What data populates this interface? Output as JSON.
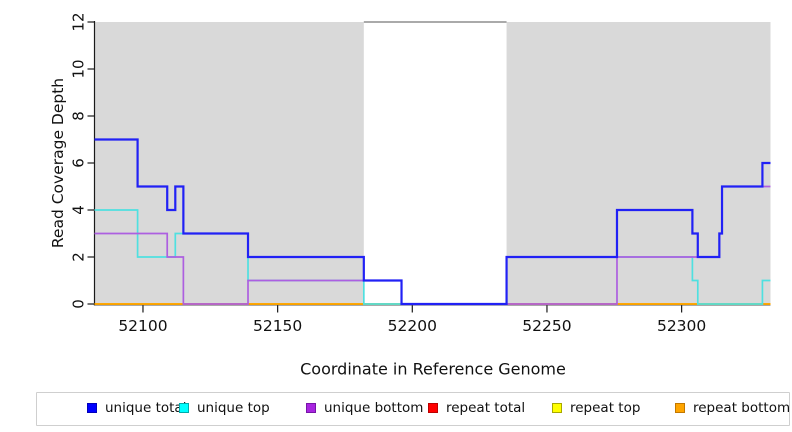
{
  "chart_data": {
    "type": "line",
    "subtype": "step",
    "title": "",
    "xlabel": "Coordinate in Reference Genome",
    "ylabel": "Read Coverage Depth",
    "xlim": [
      52082,
      52333
    ],
    "ylim": [
      0,
      12
    ],
    "x_ticks": [
      52100,
      52150,
      52200,
      52250,
      52300
    ],
    "y_ticks": [
      0,
      2,
      4,
      6,
      8,
      10,
      12
    ],
    "grid": "off",
    "shaded_regions": [
      {
        "x0": 52082,
        "x1": 52182,
        "color": "#d9d9d9"
      },
      {
        "x0": 52235,
        "x1": 52333,
        "color": "#d9d9d9"
      }
    ],
    "gap_top_line": {
      "x0": 52182,
      "x1": 52235,
      "y": 12,
      "color": "#8e8e8e"
    },
    "series": [
      {
        "name": "repeat total",
        "color": "#e60000",
        "width": 1.6,
        "points": [
          [
            52082,
            0
          ],
          [
            52333,
            0
          ]
        ]
      },
      {
        "name": "repeat top",
        "color": "#ffff00",
        "width": 1.6,
        "points": [
          [
            52082,
            0
          ],
          [
            52333,
            0
          ]
        ]
      },
      {
        "name": "repeat bottom",
        "color": "#ffa500",
        "width": 1.8,
        "points": [
          [
            52082,
            0
          ],
          [
            52333,
            0
          ]
        ]
      },
      {
        "name": "unique top",
        "color": "#4fe0e0",
        "width": 1.7,
        "points": [
          [
            52082,
            4
          ],
          [
            52098,
            2
          ],
          [
            52112,
            3
          ],
          [
            52139,
            1
          ],
          [
            52182,
            0
          ],
          [
            52235,
            2
          ],
          [
            52304,
            1
          ],
          [
            52306,
            0
          ],
          [
            52330,
            1
          ]
        ]
      },
      {
        "name": "unique bottom",
        "color": "#ad5fe0",
        "width": 1.7,
        "points": [
          [
            52082,
            3
          ],
          [
            52109,
            2
          ],
          [
            52115,
            0
          ],
          [
            52139,
            1
          ],
          [
            52196,
            0
          ],
          [
            52276,
            2
          ],
          [
            52314,
            3
          ],
          [
            52315,
            5
          ]
        ]
      },
      {
        "name": "unique total",
        "color": "#2121f5",
        "width": 2.2,
        "points": [
          [
            52082,
            7
          ],
          [
            52098,
            5
          ],
          [
            52109,
            4
          ],
          [
            52112,
            5
          ],
          [
            52115,
            3
          ],
          [
            52139,
            2
          ],
          [
            52182,
            1
          ],
          [
            52196,
            0
          ],
          [
            52235,
            2
          ],
          [
            52276,
            4
          ],
          [
            52304,
            3
          ],
          [
            52306,
            2
          ],
          [
            52314,
            3
          ],
          [
            52315,
            5
          ],
          [
            52330,
            6
          ]
        ]
      }
    ],
    "legend": [
      {
        "label": "unique total",
        "fill": "#0000ff",
        "border": "#0000bb"
      },
      {
        "label": "unique top",
        "fill": "#00ffff",
        "border": "#00aaaa"
      },
      {
        "label": "unique bottom",
        "fill": "#a825e0",
        "border": "#7714a8"
      },
      {
        "label": "repeat total",
        "fill": "#ff0000",
        "border": "#bb0000"
      },
      {
        "label": "repeat top",
        "fill": "#ffff00",
        "border": "#a8a800"
      },
      {
        "label": "repeat bottom",
        "fill": "#ffa500",
        "border": "#c27800"
      }
    ],
    "legend_position": "bottom"
  }
}
